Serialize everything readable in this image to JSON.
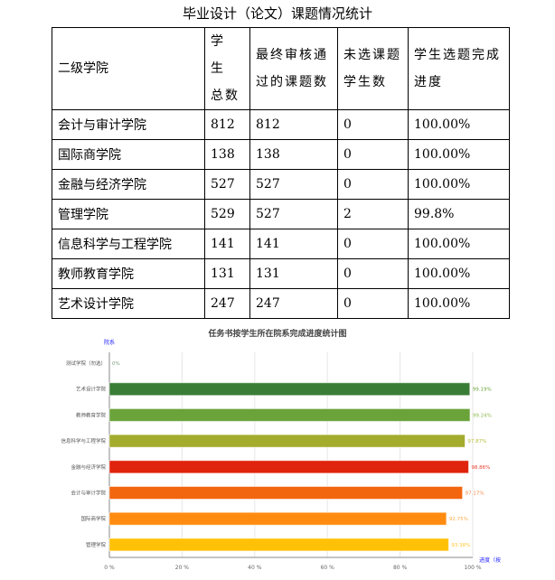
{
  "table_title": "毕业设计（论文）课题情况统计",
  "headers": [
    "二级学院",
    "学 生 总数",
    "最终审核通过的课题数",
    "未选课题学生数",
    "学生选题完成进度"
  ],
  "rows": [
    [
      "会计与审计学院",
      "812",
      "812",
      "0",
      "100.00%"
    ],
    [
      "国际商学院",
      "138",
      "138",
      "0",
      "100.00%"
    ],
    [
      "金融与经济学院",
      "527",
      "527",
      "0",
      "100.00%"
    ],
    [
      "管理学院",
      "529",
      "527",
      "2",
      "99.8%"
    ],
    [
      "信息科学与工程学院",
      "141",
      "141",
      "0",
      "100.00%"
    ],
    [
      "教师教育学院",
      "131",
      "131",
      "0",
      "100.00%"
    ],
    [
      "艺术设计学院",
      "247",
      "247",
      "0",
      "100.00%"
    ]
  ],
  "chart_data": {
    "type": "bar",
    "orientation": "horizontal",
    "title": "任务书按学生所在院系完成进度统计图",
    "ylabel": "院系",
    "xlabel": "进度（按",
    "xlim": [
      0,
      100
    ],
    "xticks": [
      "0 %",
      "20 %",
      "40 %",
      "60 %",
      "80 %",
      "100 %"
    ],
    "grid": true,
    "categories": [
      "测试学院（勿选）",
      "艺术设计学院",
      "教师教育学院",
      "信息科学与工程学院",
      "金融与经济学院",
      "会计与审计学院",
      "国际商学院",
      "管理学院"
    ],
    "values": [
      0,
      99.19,
      99.24,
      97.87,
      98.86,
      97.17,
      92.75,
      93.38
    ],
    "labels": [
      "0%",
      "99.19%",
      "99.24%",
      "97.87%",
      "98.86%",
      "97.17%",
      "92.75%",
      "93.38%"
    ],
    "colors": [
      "#999999",
      "#3a7d36",
      "#6aa33a",
      "#a3ac2d",
      "#e0230c",
      "#f2660f",
      "#ff8b10",
      "#ffc107"
    ],
    "label_colors": [
      "#7a9a7a",
      "#6aa33a",
      "#8ab84a",
      "#b8bc3c",
      "#f04030",
      "#f48a4a",
      "#ffaa4a",
      "#ffc830"
    ]
  }
}
